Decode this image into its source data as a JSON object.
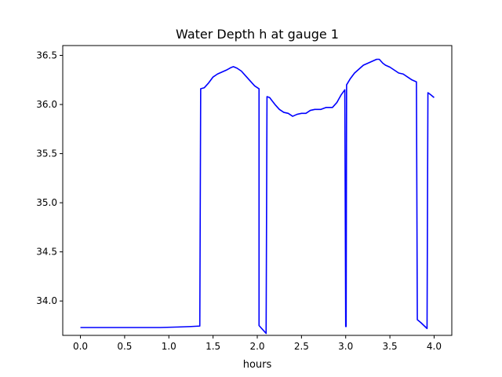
{
  "chart_data": {
    "type": "line",
    "title": "Water Depth h at gauge 1",
    "xlabel": "hours",
    "ylabel": "",
    "xlim": [
      -0.2,
      4.2
    ],
    "ylim": [
      33.65,
      36.6
    ],
    "grid": false,
    "xticks": [
      0.0,
      0.5,
      1.0,
      1.5,
      2.0,
      2.5,
      3.0,
      3.5,
      4.0
    ],
    "xtick_labels": [
      "0.0",
      "0.5",
      "1.0",
      "1.5",
      "2.0",
      "2.5",
      "3.0",
      "3.5",
      "4.0"
    ],
    "yticks": [
      34.0,
      34.5,
      35.0,
      35.5,
      36.0,
      36.5
    ],
    "ytick_labels": [
      "34.0",
      "34.5",
      "35.0",
      "35.5",
      "36.0",
      "36.5"
    ],
    "series": [
      {
        "color": "#0000ff",
        "points": [
          [
            0.0,
            33.73
          ],
          [
            0.5,
            33.73
          ],
          [
            0.9,
            33.73
          ],
          [
            1.1,
            33.735
          ],
          [
            1.25,
            33.74
          ],
          [
            1.35,
            33.745
          ],
          [
            1.36,
            36.16
          ],
          [
            1.4,
            36.17
          ],
          [
            1.45,
            36.22
          ],
          [
            1.5,
            36.28
          ],
          [
            1.55,
            36.31
          ],
          [
            1.6,
            36.33
          ],
          [
            1.65,
            36.35
          ],
          [
            1.7,
            36.375
          ],
          [
            1.73,
            36.385
          ],
          [
            1.77,
            36.37
          ],
          [
            1.82,
            36.34
          ],
          [
            1.87,
            36.29
          ],
          [
            1.92,
            36.24
          ],
          [
            1.97,
            36.19
          ],
          [
            2.02,
            36.16
          ],
          [
            2.02,
            33.75
          ],
          [
            2.1,
            33.67
          ],
          [
            2.11,
            36.08
          ],
          [
            2.14,
            36.07
          ],
          [
            2.2,
            36.0
          ],
          [
            2.25,
            35.95
          ],
          [
            2.3,
            35.92
          ],
          [
            2.35,
            35.91
          ],
          [
            2.4,
            35.88
          ],
          [
            2.45,
            35.9
          ],
          [
            2.5,
            35.91
          ],
          [
            2.55,
            35.91
          ],
          [
            2.6,
            35.94
          ],
          [
            2.65,
            35.95
          ],
          [
            2.72,
            35.95
          ],
          [
            2.78,
            35.97
          ],
          [
            2.85,
            35.97
          ],
          [
            2.9,
            36.02
          ],
          [
            2.95,
            36.1
          ],
          [
            2.99,
            36.15
          ],
          [
            3.0,
            33.74
          ],
          [
            3.005,
            33.74
          ],
          [
            3.01,
            36.2
          ],
          [
            3.05,
            36.26
          ],
          [
            3.1,
            36.32
          ],
          [
            3.15,
            36.36
          ],
          [
            3.2,
            36.4
          ],
          [
            3.25,
            36.42
          ],
          [
            3.3,
            36.44
          ],
          [
            3.35,
            36.46
          ],
          [
            3.38,
            36.46
          ],
          [
            3.42,
            36.42
          ],
          [
            3.45,
            36.4
          ],
          [
            3.5,
            36.38
          ],
          [
            3.55,
            36.35
          ],
          [
            3.6,
            36.32
          ],
          [
            3.65,
            36.31
          ],
          [
            3.7,
            36.28
          ],
          [
            3.75,
            36.25
          ],
          [
            3.8,
            36.23
          ],
          [
            3.81,
            33.81
          ],
          [
            3.85,
            33.78
          ],
          [
            3.92,
            33.72
          ],
          [
            3.93,
            36.12
          ],
          [
            3.96,
            36.1
          ],
          [
            4.0,
            36.07
          ]
        ]
      }
    ]
  }
}
